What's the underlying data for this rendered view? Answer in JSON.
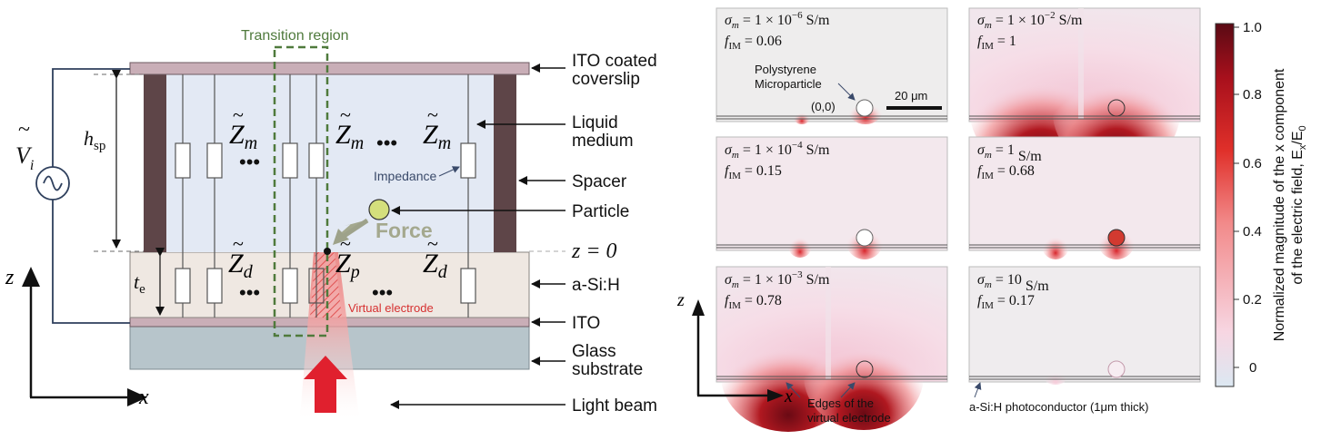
{
  "left_diagram": {
    "transition_region": "Transition region",
    "labels": {
      "ito_coated_coverslip_line1": "ITO coated",
      "ito_coated_coverslip_line2": "coverslip",
      "liquid_medium_line1": "Liquid",
      "liquid_medium_line2": "medium",
      "spacer": "Spacer",
      "particle": "Particle",
      "z_zero": "z = 0",
      "asih": "a-Si:H",
      "ito": "ITO",
      "glass_line1": "Glass",
      "glass_line2": "substrate",
      "light_beam": "Light beam"
    },
    "impedance": "Impedance",
    "force": "Force",
    "virtual_electrode": "Virtual electrode",
    "z_medium": "Z",
    "z_medium_sub": "m",
    "z_d": "Z",
    "z_d_sub": "d",
    "z_p": "Z",
    "z_p_sub": "p",
    "voltage": "V",
    "voltage_sub": "i",
    "h_sp": "h",
    "h_sp_sub": "sp",
    "t_e": "t",
    "t_e_sub": "e",
    "axis_z": "z",
    "axis_x": "x",
    "dots": "•••",
    "tilde": "~"
  },
  "panels": [
    {
      "sigma": "σ",
      "sigma_sub": "m",
      "sigma_val": " = 1 × 10",
      "sigma_exp": "−6",
      "sigma_unit": " S/m",
      "f": "f",
      "f_sub": "IM",
      "f_val": " = 0.06"
    },
    {
      "sigma": "σ",
      "sigma_sub": "m",
      "sigma_val": " = 1 × 10",
      "sigma_exp": "−2",
      "sigma_unit": " S/m",
      "f": "f",
      "f_sub": "IM",
      "f_val": " = 1"
    },
    {
      "sigma": "σ",
      "sigma_sub": "m",
      "sigma_val": " = 1 × 10",
      "sigma_exp": "−4",
      "sigma_unit": " S/m",
      "f": "f",
      "f_sub": "IM",
      "f_val": " = 0.15"
    },
    {
      "sigma": "σ",
      "sigma_sub": "m",
      "sigma_val": " = 1",
      "sigma_exp": "",
      "sigma_unit": " S/m",
      "f": "f",
      "f_sub": "IM",
      "f_val": " = 0.68"
    },
    {
      "sigma": "σ",
      "sigma_sub": "m",
      "sigma_val": " = 1 × 10",
      "sigma_exp": "−3",
      "sigma_unit": " S/m",
      "f": "f",
      "f_sub": "IM",
      "f_val": " = 0.78"
    },
    {
      "sigma": "σ",
      "sigma_sub": "m",
      "sigma_val": " = 10",
      "sigma_exp": "",
      "sigma_unit": " S/m",
      "f": "f",
      "f_sub": "IM",
      "f_val": " = 0.17"
    }
  ],
  "panel_annotations": {
    "polystyrene_line1": "Polystyrene",
    "polystyrene_line2": "Microparticle",
    "scale_bar": "20 μm",
    "origin": "(0,0)",
    "edges_line1": "Edges of the",
    "edges_line2": "virtual electrode",
    "asih_photo": "a-Si:H photoconductor (1μm thick)",
    "axis_z": "z",
    "axis_x": "x"
  },
  "colorbar": {
    "ticks": [
      "1.0",
      "0.8",
      "0.6",
      "0.4",
      "0.2",
      "0"
    ],
    "label_line1": "Normalized magnitude of the x component",
    "label_line2": "of the electric field, E",
    "label_sub": "x",
    "label_tail": "/E",
    "label_sub2": "0",
    "colors": [
      "#dce8f2",
      "#f7d6e2",
      "#f28a8a",
      "#e0302a",
      "#a8101c",
      "#5a0a14"
    ]
  }
}
